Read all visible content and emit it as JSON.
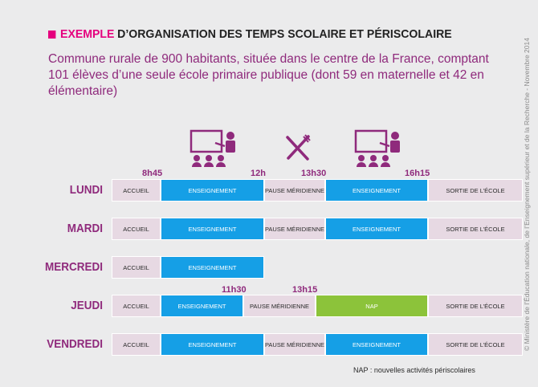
{
  "header": {
    "title_highlight": "EXEMPLE",
    "title_rest": "D’ORGANISATION DES TEMPS SCOLAIRE ET PÉRISCOLAIRE",
    "subtitle": "Commune rurale de 900 habitants, située dans le centre de la France, comptant 101 élèves d’une seule école primaire publique (dont 59 en maternelle et 42 en élémentaire)"
  },
  "side_credit": "© Ministère de l’Éducation nationale, de l’Enseignement supérieur et de la Recherche - Novembre 2014",
  "icons": [
    "classroom-teacher-icon",
    "fork-knife-icon",
    "classroom-teacher-icon"
  ],
  "colors": {
    "accent": "#e5007e",
    "purple": "#8f2a7c",
    "teaching": "#159fe6",
    "nap": "#8cc33a",
    "other": "#e7d9e3"
  },
  "times": {
    "t0845": "8h45",
    "t1200": "12h",
    "t1330": "13h30",
    "t1615": "16h15",
    "t1130": "11h30",
    "t1315": "13h15"
  },
  "labels": {
    "accueil": "ACCUEIL",
    "enseignement": "ENSEIGNEMENT",
    "pause": "PAUSE MÉRIDIENNE",
    "sortie": "SORTIE DE L’ÉCOLE",
    "nap": "NAP"
  },
  "days": {
    "lundi": "LUNDI",
    "mardi": "MARDI",
    "mercredi": "MERCREDI",
    "jeudi": "JEUDI",
    "vendredi": "VENDREDI"
  },
  "footnote": "NAP : nouvelles activités périscolaires"
}
